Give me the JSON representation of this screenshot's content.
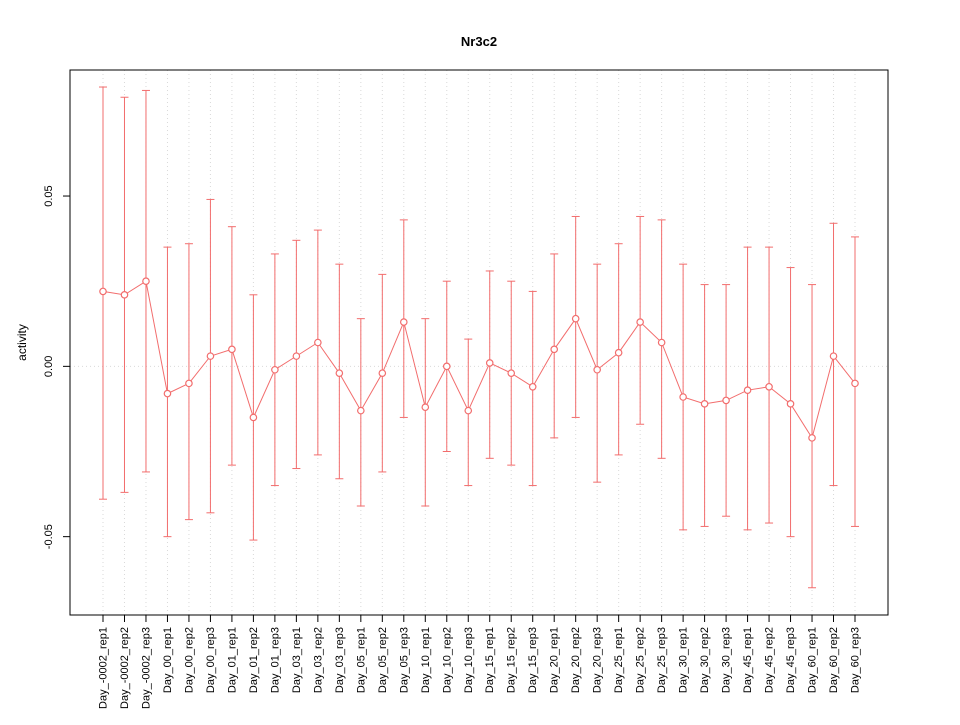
{
  "title": "Nr3c2",
  "colors": {
    "series": "#f26d6d",
    "grid": "#d9d9d9",
    "axis": "#000000",
    "background": "#ffffff"
  },
  "chart_data": {
    "type": "line",
    "title": "Nr3c2",
    "xlabel": "",
    "ylabel": "activity",
    "ylim": [
      -0.073,
      0.087
    ],
    "yticks": [
      -0.05,
      0,
      0.05
    ],
    "ytick_labels": [
      "-0.05",
      "0.00",
      "0.05"
    ],
    "grid": "vertical-dotted",
    "zero_line": true,
    "legend": "none",
    "marker": "open-circle",
    "error_bars": true,
    "categories": [
      "Day_-0002_rep1",
      "Day_-0002_rep2",
      "Day_-0002_rep3",
      "Day_00_rep1",
      "Day_00_rep2",
      "Day_00_rep3",
      "Day_01_rep1",
      "Day_01_rep2",
      "Day_01_rep3",
      "Day_03_rep1",
      "Day_03_rep2",
      "Day_03_rep3",
      "Day_05_rep1",
      "Day_05_rep2",
      "Day_05_rep3",
      "Day_10_rep1",
      "Day_10_rep2",
      "Day_10_rep3",
      "Day_15_rep1",
      "Day_15_rep2",
      "Day_15_rep3",
      "Day_20_rep1",
      "Day_20_rep2",
      "Day_20_rep3",
      "Day_25_rep1",
      "Day_25_rep2",
      "Day_25_rep3",
      "Day_30_rep1",
      "Day_30_rep2",
      "Day_30_rep3",
      "Day_45_rep1",
      "Day_45_rep2",
      "Day_45_rep3",
      "Day_60_rep1",
      "Day_60_rep2",
      "Day_60_rep3"
    ],
    "series": [
      {
        "name": "activity",
        "values": [
          0.022,
          0.021,
          0.025,
          -0.008,
          -0.005,
          0.003,
          0.005,
          -0.015,
          -0.001,
          0.003,
          0.007,
          -0.002,
          -0.013,
          -0.002,
          0.013,
          -0.012,
          0.0,
          -0.013,
          0.001,
          -0.002,
          -0.006,
          0.005,
          0.014,
          -0.001,
          0.004,
          0.013,
          0.007,
          -0.009,
          -0.011,
          -0.01,
          -0.007,
          -0.006,
          -0.011,
          -0.021,
          0.003,
          -0.005
        ],
        "upper": [
          0.082,
          0.079,
          0.081,
          0.035,
          0.036,
          0.049,
          0.041,
          0.021,
          0.033,
          0.037,
          0.04,
          0.03,
          0.014,
          0.027,
          0.043,
          0.014,
          0.025,
          0.008,
          0.028,
          0.025,
          0.022,
          0.033,
          0.044,
          0.03,
          0.036,
          0.044,
          0.043,
          0.03,
          0.024,
          0.024,
          0.035,
          0.035,
          0.029,
          0.024,
          0.042,
          0.038
        ],
        "lower": [
          -0.039,
          -0.037,
          -0.031,
          -0.05,
          -0.045,
          -0.043,
          -0.029,
          -0.051,
          -0.035,
          -0.03,
          -0.026,
          -0.033,
          -0.041,
          -0.031,
          -0.015,
          -0.041,
          -0.025,
          -0.035,
          -0.027,
          -0.029,
          -0.035,
          -0.021,
          -0.015,
          -0.034,
          -0.026,
          -0.017,
          -0.027,
          -0.048,
          -0.047,
          -0.044,
          -0.048,
          -0.046,
          -0.05,
          -0.065,
          -0.035,
          -0.047
        ]
      }
    ]
  }
}
